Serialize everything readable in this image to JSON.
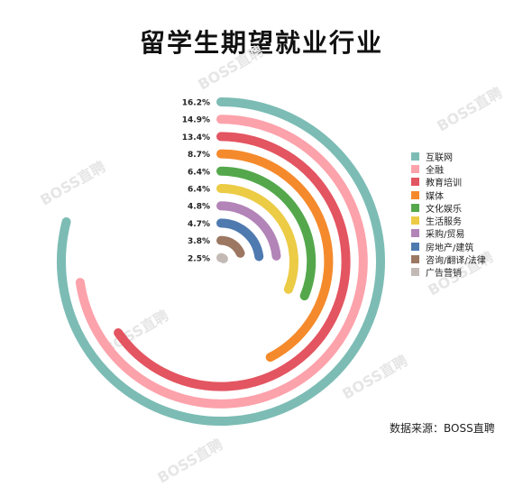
{
  "watermark": "BOSS直聘",
  "source": "数据来源：BOSS直聘",
  "chart_data": {
    "type": "radial-bar",
    "title": "留学生期望就业行业",
    "unit": "%",
    "legend_position": "right",
    "categories": [
      "互联网",
      "全融",
      "教育培训",
      "媒体",
      "文化娱乐",
      "生活服务",
      "采购/贸易",
      "房地产/建筑",
      "咨询/翻译/法律",
      "广告营销"
    ],
    "values": [
      16.2,
      14.9,
      13.4,
      8.7,
      6.4,
      6.4,
      4.8,
      4.7,
      3.8,
      2.5
    ],
    "value_labels": [
      "16.2%",
      "14.9%",
      "13.4%",
      "8.7%",
      "6.4%",
      "6.4%",
      "4.8%",
      "4.7%",
      "3.8%",
      "2.5%"
    ],
    "colors": [
      "#7cbcb5",
      "#fca2ab",
      "#e35561",
      "#f58a2c",
      "#54a84b",
      "#eccb45",
      "#b284b7",
      "#4f7ab0",
      "#9c7761",
      "#c3bab6"
    ]
  }
}
